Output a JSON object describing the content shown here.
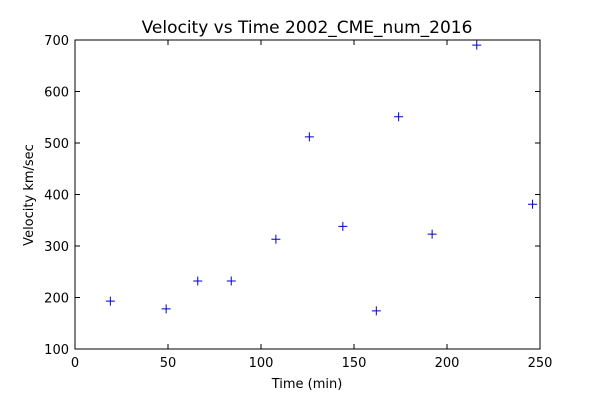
{
  "chart_data": {
    "type": "scatter",
    "title": "Velocity vs Time 2002_CME_num_2016",
    "xlabel": "Time (min)",
    "ylabel": "Velocity km/sec",
    "xlim": [
      0,
      250
    ],
    "ylim": [
      100,
      700
    ],
    "xticks": [
      0,
      50,
      100,
      150,
      200,
      250
    ],
    "yticks": [
      100,
      200,
      300,
      400,
      500,
      600,
      700
    ],
    "xtick_labels": [
      "0",
      "50",
      "100",
      "150",
      "200",
      "250"
    ],
    "ytick_labels": [
      "100",
      "200",
      "300",
      "400",
      "500",
      "600",
      "700"
    ],
    "grid": false,
    "marker": "plus",
    "marker_color": "#0000cc",
    "series": [
      {
        "x": [
          19,
          49,
          66,
          84,
          108,
          126,
          144,
          162,
          174,
          192,
          216,
          246
        ],
        "y": [
          193,
          178,
          232,
          232,
          313,
          512,
          338,
          174,
          551,
          323,
          690,
          381
        ]
      }
    ]
  }
}
